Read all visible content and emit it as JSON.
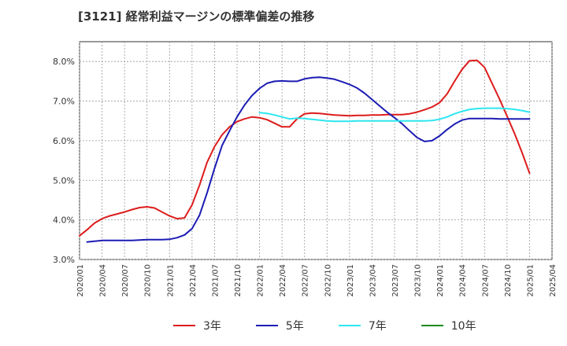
{
  "chart_data": {
    "type": "line",
    "title": "[3121]  経常利益マージンの標準偏差の推移",
    "xlabel": "",
    "ylabel": "",
    "ylim": [
      3.0,
      8.5
    ],
    "yticks": [
      "3.0%",
      "4.0%",
      "5.0%",
      "6.0%",
      "7.0%",
      "8.0%"
    ],
    "ytick_values": [
      3.0,
      4.0,
      5.0,
      6.0,
      7.0,
      8.0
    ],
    "xticks": [
      "2020/01",
      "2020/04",
      "2020/07",
      "2020/10",
      "2021/01",
      "2021/04",
      "2021/07",
      "2021/10",
      "2022/01",
      "2022/04",
      "2022/07",
      "2022/10",
      "2023/01",
      "2023/04",
      "2023/07",
      "2023/10",
      "2024/01",
      "2024/04",
      "2024/07",
      "2024/10",
      "2025/01",
      "2025/04"
    ],
    "x_start": "2020/01",
    "x_end": "2025/04",
    "grid": true,
    "legend_position": "bottom",
    "series": [
      {
        "name": "3年",
        "color": "#dd1c1c",
        "x": [
          "2020/01",
          "2020/02",
          "2020/03",
          "2020/04",
          "2020/05",
          "2020/06",
          "2020/07",
          "2020/08",
          "2020/09",
          "2020/10",
          "2020/11",
          "2020/12",
          "2021/01",
          "2021/02",
          "2021/03",
          "2021/04",
          "2021/05",
          "2021/06",
          "2021/07",
          "2021/08",
          "2021/09",
          "2021/10",
          "2021/11",
          "2021/12",
          "2022/01",
          "2022/02",
          "2022/03",
          "2022/04",
          "2022/05",
          "2022/06",
          "2022/07",
          "2022/08",
          "2022/09",
          "2022/10",
          "2022/11",
          "2022/12",
          "2023/01",
          "2023/02",
          "2023/03",
          "2023/04",
          "2023/05",
          "2023/06",
          "2023/07",
          "2023/08",
          "2023/09",
          "2023/10",
          "2023/11",
          "2023/12",
          "2024/01",
          "2024/02",
          "2024/03",
          "2024/04",
          "2024/05",
          "2024/06",
          "2024/07",
          "2024/08",
          "2024/09",
          "2024/10",
          "2024/11",
          "2024/12",
          "2025/01"
        ],
        "values": [
          3.6,
          3.75,
          3.92,
          4.03,
          4.1,
          4.15,
          4.2,
          4.26,
          4.31,
          4.33,
          4.3,
          4.2,
          4.1,
          4.03,
          4.05,
          4.38,
          4.88,
          5.45,
          5.85,
          6.15,
          6.35,
          6.48,
          6.55,
          6.6,
          6.58,
          6.53,
          6.44,
          6.35,
          6.35,
          6.55,
          6.68,
          6.7,
          6.69,
          6.67,
          6.65,
          6.64,
          6.63,
          6.64,
          6.64,
          6.65,
          6.65,
          6.66,
          6.66,
          6.66,
          6.68,
          6.72,
          6.78,
          6.85,
          6.96,
          7.18,
          7.5,
          7.8,
          8.02,
          8.03,
          7.85,
          7.45,
          7.05,
          6.62,
          6.18,
          5.7,
          5.18
        ]
      },
      {
        "name": "5年",
        "color": "#1c1cb4",
        "x": [
          "2020/02",
          "2020/03",
          "2020/04",
          "2020/05",
          "2020/06",
          "2020/07",
          "2020/08",
          "2020/09",
          "2020/10",
          "2020/11",
          "2020/12",
          "2021/01",
          "2021/02",
          "2021/03",
          "2021/04",
          "2021/05",
          "2021/06",
          "2021/07",
          "2021/08",
          "2021/09",
          "2021/10",
          "2021/11",
          "2021/12",
          "2022/01",
          "2022/02",
          "2022/03",
          "2022/04",
          "2022/05",
          "2022/06",
          "2022/07",
          "2022/08",
          "2022/09",
          "2022/10",
          "2022/11",
          "2022/12",
          "2023/01",
          "2023/02",
          "2023/03",
          "2023/04",
          "2023/05",
          "2023/06",
          "2023/07",
          "2023/08",
          "2023/09",
          "2023/10",
          "2023/11",
          "2023/12",
          "2024/01",
          "2024/02",
          "2024/03",
          "2024/04",
          "2024/05",
          "2024/06",
          "2024/07",
          "2024/08",
          "2024/09",
          "2024/10",
          "2024/11",
          "2024/12",
          "2025/01"
        ],
        "values": [
          3.44,
          3.46,
          3.48,
          3.48,
          3.48,
          3.48,
          3.48,
          3.49,
          3.5,
          3.5,
          3.5,
          3.51,
          3.55,
          3.62,
          3.78,
          4.12,
          4.68,
          5.3,
          5.88,
          6.25,
          6.6,
          6.9,
          7.14,
          7.32,
          7.45,
          7.5,
          7.51,
          7.5,
          7.5,
          7.56,
          7.59,
          7.6,
          7.58,
          7.55,
          7.49,
          7.42,
          7.33,
          7.2,
          7.04,
          6.88,
          6.72,
          6.58,
          6.43,
          6.25,
          6.08,
          5.98,
          6.0,
          6.12,
          6.28,
          6.42,
          6.52,
          6.56,
          6.56,
          6.56,
          6.56,
          6.55,
          6.55,
          6.55,
          6.55,
          6.55
        ]
      },
      {
        "name": "7年",
        "color": "#2ee6f0",
        "x": [
          "2022/01",
          "2022/02",
          "2022/03",
          "2022/04",
          "2022/05",
          "2022/06",
          "2022/07",
          "2022/08",
          "2022/09",
          "2022/10",
          "2022/11",
          "2022/12",
          "2023/01",
          "2023/02",
          "2023/03",
          "2023/04",
          "2023/05",
          "2023/06",
          "2023/07",
          "2023/08",
          "2023/09",
          "2023/10",
          "2023/11",
          "2023/12",
          "2024/01",
          "2024/02",
          "2024/03",
          "2024/04",
          "2024/05",
          "2024/06",
          "2024/07",
          "2024/08",
          "2024/09",
          "2024/10",
          "2024/11",
          "2024/12",
          "2025/01"
        ],
        "values": [
          6.71,
          6.69,
          6.65,
          6.6,
          6.55,
          6.57,
          6.56,
          6.54,
          6.52,
          6.5,
          6.49,
          6.49,
          6.49,
          6.5,
          6.5,
          6.5,
          6.5,
          6.5,
          6.5,
          6.5,
          6.5,
          6.5,
          6.5,
          6.51,
          6.54,
          6.6,
          6.68,
          6.74,
          6.79,
          6.81,
          6.82,
          6.82,
          6.82,
          6.81,
          6.79,
          6.76,
          6.72
        ]
      },
      {
        "name": "10年",
        "color": "#1c8c1c",
        "x": [],
        "values": []
      }
    ]
  }
}
